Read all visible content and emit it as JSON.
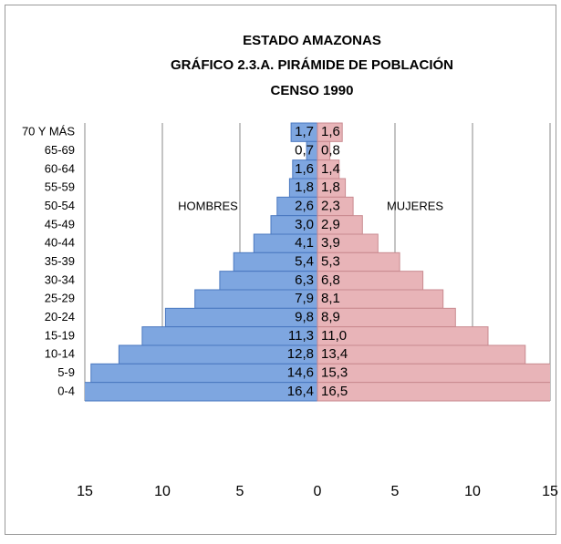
{
  "chart_data": {
    "type": "pyramid",
    "title_lines": [
      "ESTADO AMAZONAS",
      "GRÁFICO 2.3.A. PIRÁMIDE DE POBLACIÓN",
      "CENSO 1990"
    ],
    "categories": [
      "70 Y MÁS",
      "65-69",
      "60-64",
      "55-59",
      "50-54",
      "45-49",
      "40-44",
      "35-39",
      "30-34",
      "25-29",
      "20-24",
      "15-19",
      "10-14",
      "5-9",
      "0-4"
    ],
    "series": [
      {
        "name": "HOMBRES",
        "side": "left",
        "color": "#7ea6e0",
        "stroke": "#4a78c0",
        "values": [
          1.7,
          0.7,
          1.6,
          1.8,
          2.6,
          3.0,
          4.1,
          5.4,
          6.3,
          7.9,
          9.8,
          11.3,
          12.8,
          14.6,
          16.4
        ],
        "value_labels": [
          "1,7",
          "0,7",
          "1,6",
          "1,8",
          "2,6",
          "3,0",
          "4,1",
          "5,4",
          "6,3",
          "7,9",
          "9,8",
          "11,3",
          "12,8",
          "14,6",
          "16,4"
        ]
      },
      {
        "name": "MUJERES",
        "side": "right",
        "color": "#e8b4b8",
        "stroke": "#c98a90",
        "values": [
          1.6,
          0.8,
          1.4,
          1.8,
          2.3,
          2.9,
          3.9,
          5.3,
          6.8,
          8.1,
          8.9,
          11.0,
          13.4,
          15.3,
          16.5
        ],
        "value_labels": [
          "1,6",
          "0,8",
          "1,4",
          "1,8",
          "2,3",
          "2,9",
          "3,9",
          "5,3",
          "6,8",
          "8,1",
          "8,9",
          "11,0",
          "13,4",
          "15,3",
          "16,5"
        ]
      }
    ],
    "xlim": [
      -15,
      15
    ],
    "xticks": [
      {
        "value": -15,
        "label": "15"
      },
      {
        "value": -10,
        "label": "10"
      },
      {
        "value": -5,
        "label": "5"
      },
      0,
      5,
      10,
      15
    ],
    "grid": true
  }
}
